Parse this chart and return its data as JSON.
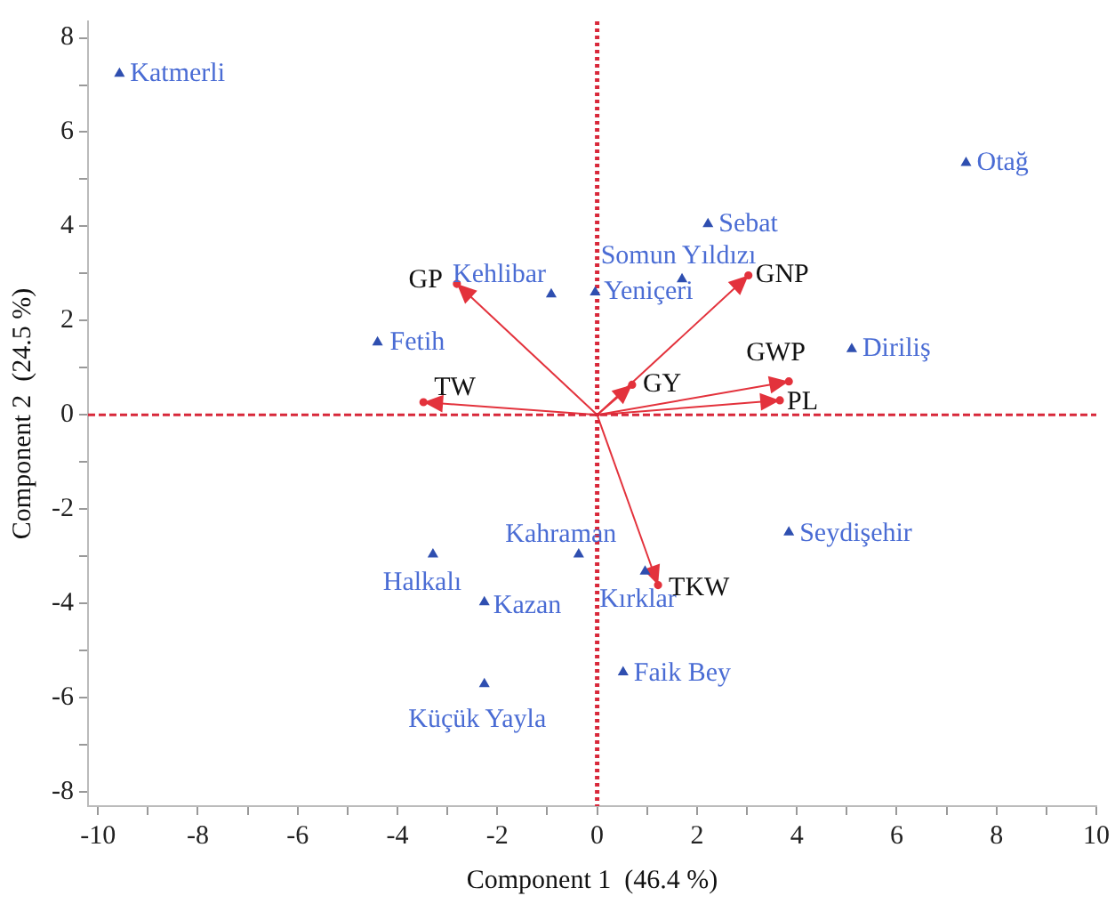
{
  "chart_data": {
    "type": "scatter",
    "xlabel": "Component 1  (46.4 %)",
    "ylabel": "Component 2  (24.5 %)",
    "xlim": [
      -10.2,
      10
    ],
    "ylim": [
      -8.3,
      8.35
    ],
    "xticks": [
      -10,
      {
        "value": -9,
        "label": null
      },
      -8,
      {
        "value": -7,
        "label": null
      },
      -6,
      {
        "value": -5,
        "label": null
      },
      -4,
      {
        "value": -3,
        "label": null
      },
      -2,
      {
        "value": -1,
        "label": null
      },
      0,
      {
        "value": 1,
        "label": null
      },
      2,
      {
        "value": 3,
        "label": null
      },
      4,
      {
        "value": 5,
        "label": null
      },
      6,
      {
        "value": 7,
        "label": null
      },
      8,
      {
        "value": 9,
        "label": null
      },
      10
    ],
    "yticks": [
      -8,
      {
        "value": -7,
        "label": null
      },
      -6,
      {
        "value": -5,
        "label": null
      },
      -4,
      {
        "value": -3,
        "label": null
      },
      -2,
      {
        "value": -1,
        "label": null
      },
      0,
      {
        "value": 1,
        "label": null
      },
      2,
      {
        "value": 3,
        "label": null
      },
      4,
      {
        "value": 5,
        "label": null
      },
      6,
      {
        "value": 7,
        "label": null
      },
      8
    ],
    "grid": false,
    "legend": false,
    "series": [
      {
        "type": "scatter",
        "color": "#2f4fb0",
        "marker": "triangle",
        "x": [
          -9.57,
          7.39,
          2.22,
          1.7,
          -0.04,
          -0.92,
          -4.4,
          5.1,
          3.84,
          -0.37,
          -3.29,
          0.96,
          -2.26,
          0.52,
          -2.26
        ],
        "values": [
          7.24,
          5.35,
          4.05,
          2.88,
          2.6,
          2.56,
          1.54,
          1.4,
          -2.49,
          -2.96,
          -2.96,
          -3.32,
          -3.97,
          -5.46,
          -5.71
        ]
      },
      {
        "type": "scatter",
        "color": "#e3323c",
        "marker": "circle",
        "x": [
          -2.81,
          -3.48,
          3.03,
          0.7,
          3.84,
          3.66,
          1.22
        ],
        "values": [
          2.78,
          0.27,
          2.96,
          0.64,
          0.71,
          0.31,
          -3.61
        ]
      }
    ],
    "ref_lines": [
      {
        "axis": "x",
        "value": 0,
        "color": "#d8283a",
        "line_style": "dotted"
      },
      {
        "axis": "y",
        "value": 0,
        "color": "#d8283a",
        "line_style": "dashed"
      }
    ],
    "annotations": [
      {
        "text": "Katmerli",
        "x": -9.57,
        "y": 7.24
      },
      {
        "text": "Otağ",
        "x": 7.39,
        "y": 5.35
      },
      {
        "text": "Sebat",
        "x": 2.22,
        "y": 4.05
      },
      {
        "text": "Somun Yıldızı",
        "x": 1.7,
        "y": 2.88
      },
      {
        "text": "Yeniçeri",
        "x": -0.04,
        "y": 2.6
      },
      {
        "text": "Kehlibar",
        "x": -0.92,
        "y": 2.56
      },
      {
        "text": "Fetih",
        "x": -4.4,
        "y": 1.54
      },
      {
        "text": "Diriliş",
        "x": 5.1,
        "y": 1.4
      },
      {
        "text": "Seydişehir",
        "x": 3.84,
        "y": -2.49
      },
      {
        "text": "Kahraman",
        "x": -0.37,
        "y": -2.96
      },
      {
        "text": "Halkalı",
        "x": -3.29,
        "y": -2.96
      },
      {
        "text": "Kırklar",
        "x": 0.96,
        "y": -3.32
      },
      {
        "text": "Kazan",
        "x": -2.26,
        "y": -3.97
      },
      {
        "text": "Faik Bey",
        "x": 0.52,
        "y": -5.46
      },
      {
        "text": "Küçük Yayla",
        "x": -2.26,
        "y": -5.71
      },
      {
        "text": "GP",
        "x": -2.81,
        "y": 2.78
      },
      {
        "text": "TW",
        "x": -3.48,
        "y": 0.27
      },
      {
        "text": "GNP",
        "x": 3.03,
        "y": 2.96
      },
      {
        "text": "GY",
        "x": 0.7,
        "y": 0.64
      },
      {
        "text": "GWP",
        "x": 3.84,
        "y": 0.71
      },
      {
        "text": "PL",
        "x": 3.66,
        "y": 0.31
      },
      {
        "text": "TKW",
        "x": 1.22,
        "y": -3.61
      }
    ]
  }
}
